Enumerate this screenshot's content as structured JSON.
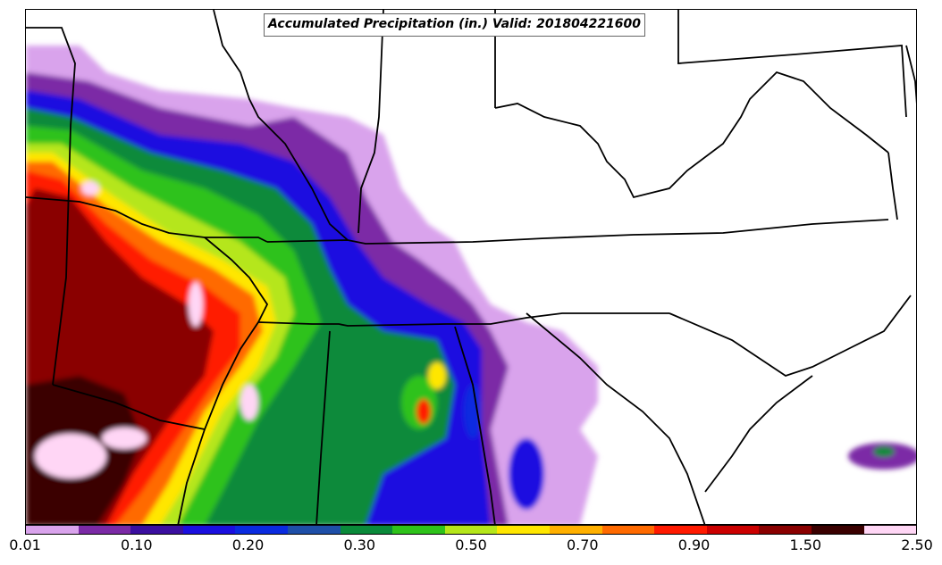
{
  "title": "Accumulated Precipitation (in.) Valid: 201804221600",
  "colorbar": {
    "colors": [
      "#d9a3ec",
      "#7b2aa6",
      "#3b0fa0",
      "#1a0fe0",
      "#0a2be0",
      "#1e4fa8",
      "#0a8a3a",
      "#2ec21a",
      "#b5e61a",
      "#ffe600",
      "#ffb000",
      "#ff6a00",
      "#ff1a00",
      "#cc0000",
      "#8a0000",
      "#3a0000",
      "#ffd6f5"
    ],
    "tick_labels": [
      "0.01",
      "0.10",
      "0.20",
      "0.30",
      "0.50",
      "0.70",
      "0.90",
      "1.50",
      "2.50"
    ]
  },
  "map_layers": {
    "background": "#ffffff",
    "state_boundary_color": "#000000"
  }
}
